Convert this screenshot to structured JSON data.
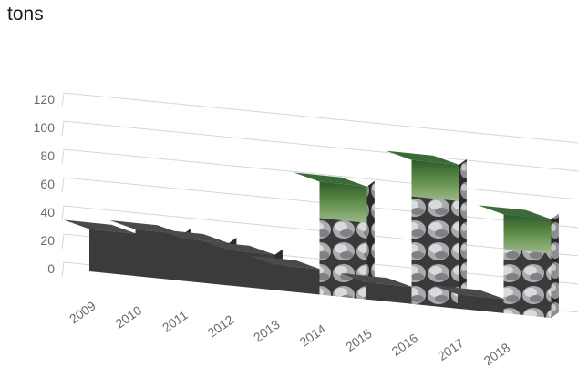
{
  "chart_data": {
    "type": "bar",
    "style": "3d-pictograph",
    "unit": "tons",
    "categories": [
      "2009",
      "2010",
      "2011",
      "2012",
      "2013",
      "2014",
      "2015",
      "2016",
      "2017",
      "2018"
    ],
    "values": [
      30,
      33,
      30,
      25,
      18,
      80,
      12,
      102,
      10,
      70
    ],
    "yticks": [
      0,
      20,
      40,
      60,
      80,
      100,
      120
    ],
    "ylim": [
      0,
      120
    ],
    "grid": true,
    "picture_fill_categories": [
      "2014",
      "2016",
      "2018"
    ],
    "picture_theme": "stacked stones with green foliage top",
    "colors": {
      "dark_bar": "#3b3b3b",
      "dark_bar_top": "#4a4a4a",
      "gridline": "#d6d6d6",
      "stone": "#b7b9bc",
      "foliage": "#3c6b3a"
    }
  }
}
